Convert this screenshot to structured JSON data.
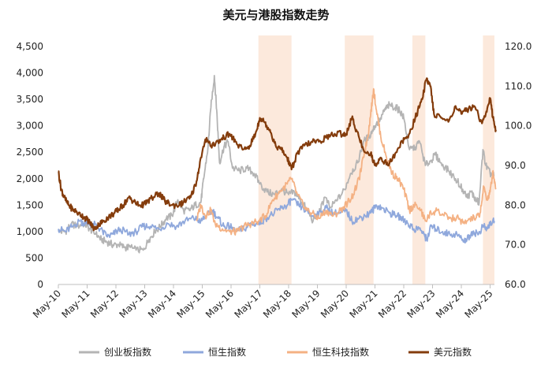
{
  "chart_data": {
    "type": "line",
    "title": "美元与港股指数走势",
    "x_tick_labels": [
      "May-10",
      "May-11",
      "May-12",
      "May-13",
      "May-14",
      "May-15",
      "May-16",
      "May-17",
      "May-18",
      "May-19",
      "May-20",
      "May-21",
      "May-22",
      "May-23",
      "May-24",
      "May-25"
    ],
    "y_left": {
      "ylim": [
        0,
        4500
      ],
      "tick_labels": [
        "0",
        "500",
        "1,000",
        "1,500",
        "2,000",
        "2,500",
        "3,000",
        "3,500",
        "4,000",
        "4,500"
      ]
    },
    "y_right": {
      "ylim": [
        60,
        120
      ],
      "tick_labels": [
        "60.0",
        "70.0",
        "80.0",
        "90.0",
        "100.0",
        "110.0",
        "120.0"
      ]
    },
    "shaded_periods": [
      {
        "start": 2016.95,
        "end": 2018.1
      },
      {
        "start": 2019.95,
        "end": 2020.95
      },
      {
        "start": 2022.3,
        "end": 2022.75
      },
      {
        "start": 2024.75,
        "end": 2025.15
      }
    ],
    "series": [
      {
        "name": "创业板指数",
        "axis": "left",
        "color": "#b4b4b4",
        "points": [
          [
            2010.0,
            1000
          ],
          [
            2010.25,
            1000
          ],
          [
            2010.45,
            1150
          ],
          [
            2010.65,
            1100
          ],
          [
            2010.9,
            1150
          ],
          [
            2011.1,
            1050
          ],
          [
            2011.3,
            950
          ],
          [
            2011.5,
            850
          ],
          [
            2011.7,
            800
          ],
          [
            2011.9,
            750
          ],
          [
            2012.1,
            750
          ],
          [
            2012.3,
            700
          ],
          [
            2012.5,
            700
          ],
          [
            2012.7,
            650
          ],
          [
            2012.95,
            650
          ],
          [
            2013.15,
            850
          ],
          [
            2013.35,
            1000
          ],
          [
            2013.55,
            1100
          ],
          [
            2013.75,
            1250
          ],
          [
            2013.95,
            1300
          ],
          [
            2014.15,
            1600
          ],
          [
            2014.35,
            1400
          ],
          [
            2014.55,
            1400
          ],
          [
            2014.75,
            1500
          ],
          [
            2014.95,
            1550
          ],
          [
            2015.05,
            2000
          ],
          [
            2015.2,
            2600
          ],
          [
            2015.3,
            3350
          ],
          [
            2015.42,
            3950
          ],
          [
            2015.5,
            3300
          ],
          [
            2015.6,
            2300
          ],
          [
            2015.75,
            2600
          ],
          [
            2015.9,
            2700
          ],
          [
            2016.05,
            2200
          ],
          [
            2016.3,
            2150
          ],
          [
            2016.55,
            2200
          ],
          [
            2016.8,
            2100
          ],
          [
            2017.0,
            1900
          ],
          [
            2017.25,
            1750
          ],
          [
            2017.5,
            1700
          ],
          [
            2017.75,
            1800
          ],
          [
            2018.0,
            1700
          ],
          [
            2018.2,
            1750
          ],
          [
            2018.4,
            1600
          ],
          [
            2018.6,
            1450
          ],
          [
            2018.85,
            1200
          ],
          [
            2019.1,
            1400
          ],
          [
            2019.25,
            1650
          ],
          [
            2019.45,
            1450
          ],
          [
            2019.7,
            1600
          ],
          [
            2019.95,
            1800
          ],
          [
            2020.15,
            2100
          ],
          [
            2020.4,
            2300
          ],
          [
            2020.6,
            2700
          ],
          [
            2020.8,
            2800
          ],
          [
            2021.0,
            3000
          ],
          [
            2021.2,
            3150
          ],
          [
            2021.35,
            3300
          ],
          [
            2021.5,
            3400
          ],
          [
            2021.7,
            3350
          ],
          [
            2021.85,
            3300
          ],
          [
            2022.0,
            3150
          ],
          [
            2022.2,
            2550
          ],
          [
            2022.4,
            2600
          ],
          [
            2022.55,
            2700
          ],
          [
            2022.75,
            2250
          ],
          [
            2022.95,
            2350
          ],
          [
            2023.1,
            2450
          ],
          [
            2023.3,
            2300
          ],
          [
            2023.55,
            2150
          ],
          [
            2023.8,
            2000
          ],
          [
            2024.05,
            1800
          ],
          [
            2024.2,
            1650
          ],
          [
            2024.35,
            1750
          ],
          [
            2024.5,
            1600
          ],
          [
            2024.62,
            1550
          ],
          [
            2024.75,
            2550
          ],
          [
            2024.85,
            2250
          ],
          [
            2025.0,
            2100
          ],
          [
            2025.15,
            2050
          ]
        ]
      },
      {
        "name": "恒生指数",
        "axis": "left",
        "color": "#8fa8dc",
        "points": [
          [
            2010.0,
            1050
          ],
          [
            2010.25,
            1000
          ],
          [
            2010.5,
            1100
          ],
          [
            2010.75,
            1200
          ],
          [
            2010.95,
            1150
          ],
          [
            2011.2,
            1150
          ],
          [
            2011.45,
            1050
          ],
          [
            2011.7,
            900
          ],
          [
            2011.9,
            950
          ],
          [
            2012.15,
            1050
          ],
          [
            2012.45,
            950
          ],
          [
            2012.7,
            1000
          ],
          [
            2012.95,
            1100
          ],
          [
            2013.2,
            1100
          ],
          [
            2013.5,
            1050
          ],
          [
            2013.8,
            1150
          ],
          [
            2014.1,
            1100
          ],
          [
            2014.4,
            1200
          ],
          [
            2014.7,
            1250
          ],
          [
            2014.95,
            1200
          ],
          [
            2015.15,
            1300
          ],
          [
            2015.35,
            1400
          ],
          [
            2015.55,
            1250
          ],
          [
            2015.75,
            1100
          ],
          [
            2015.95,
            1100
          ],
          [
            2016.15,
            1000
          ],
          [
            2016.45,
            1050
          ],
          [
            2016.7,
            1150
          ],
          [
            2016.95,
            1150
          ],
          [
            2017.2,
            1250
          ],
          [
            2017.5,
            1350
          ],
          [
            2017.75,
            1450
          ],
          [
            2017.95,
            1500
          ],
          [
            2018.1,
            1600
          ],
          [
            2018.35,
            1500
          ],
          [
            2018.6,
            1400
          ],
          [
            2018.85,
            1300
          ],
          [
            2019.05,
            1350
          ],
          [
            2019.3,
            1450
          ],
          [
            2019.55,
            1350
          ],
          [
            2019.8,
            1350
          ],
          [
            2020.0,
            1400
          ],
          [
            2020.2,
            1200
          ],
          [
            2020.45,
            1250
          ],
          [
            2020.65,
            1300
          ],
          [
            2020.85,
            1350
          ],
          [
            2021.05,
            1500
          ],
          [
            2021.25,
            1450
          ],
          [
            2021.5,
            1350
          ],
          [
            2021.75,
            1300
          ],
          [
            2021.95,
            1250
          ],
          [
            2022.15,
            1150
          ],
          [
            2022.35,
            1050
          ],
          [
            2022.55,
            1050
          ],
          [
            2022.7,
            950
          ],
          [
            2022.8,
            850
          ],
          [
            2022.95,
            1100
          ],
          [
            2023.1,
            1050
          ],
          [
            2023.35,
            1000
          ],
          [
            2023.6,
            950
          ],
          [
            2023.85,
            950
          ],
          [
            2024.05,
            850
          ],
          [
            2024.2,
            850
          ],
          [
            2024.4,
            1000
          ],
          [
            2024.6,
            950
          ],
          [
            2024.75,
            1100
          ],
          [
            2024.9,
            1050
          ],
          [
            2025.0,
            1150
          ],
          [
            2025.15,
            1200
          ]
        ]
      },
      {
        "name": "恒生科技指数",
        "axis": "left",
        "color": "#f4b183",
        "points": [
          [
            2014.8,
            1200
          ],
          [
            2014.95,
            1500
          ],
          [
            2015.1,
            1300
          ],
          [
            2015.3,
            1400
          ],
          [
            2015.45,
            1150
          ],
          [
            2015.7,
            1050
          ],
          [
            2015.95,
            1000
          ],
          [
            2016.2,
            1000
          ],
          [
            2016.45,
            1100
          ],
          [
            2016.7,
            1150
          ],
          [
            2016.95,
            1200
          ],
          [
            2017.2,
            1300
          ],
          [
            2017.45,
            1600
          ],
          [
            2017.7,
            1750
          ],
          [
            2017.95,
            1900
          ],
          [
            2018.1,
            2000
          ],
          [
            2018.3,
            1700
          ],
          [
            2018.55,
            1450
          ],
          [
            2018.8,
            1350
          ],
          [
            2019.05,
            1250
          ],
          [
            2019.3,
            1400
          ],
          [
            2019.55,
            1300
          ],
          [
            2019.8,
            1400
          ],
          [
            2020.05,
            1550
          ],
          [
            2020.25,
            1700
          ],
          [
            2020.45,
            2000
          ],
          [
            2020.6,
            2400
          ],
          [
            2020.75,
            2800
          ],
          [
            2020.85,
            3200
          ],
          [
            2020.95,
            3700
          ],
          [
            2021.05,
            3300
          ],
          [
            2021.2,
            2800
          ],
          [
            2021.4,
            2400
          ],
          [
            2021.6,
            2100
          ],
          [
            2021.8,
            2000
          ],
          [
            2022.0,
            1800
          ],
          [
            2022.2,
            1400
          ],
          [
            2022.35,
            1500
          ],
          [
            2022.55,
            1450
          ],
          [
            2022.75,
            1200
          ],
          [
            2022.95,
            1350
          ],
          [
            2023.15,
            1400
          ],
          [
            2023.4,
            1300
          ],
          [
            2023.65,
            1250
          ],
          [
            2023.9,
            1250
          ],
          [
            2024.1,
            1150
          ],
          [
            2024.3,
            1250
          ],
          [
            2024.5,
            1250
          ],
          [
            2024.65,
            1350
          ],
          [
            2024.78,
            1850
          ],
          [
            2024.9,
            1600
          ],
          [
            2025.0,
            1750
          ],
          [
            2025.1,
            2150
          ],
          [
            2025.2,
            1800
          ]
        ]
      },
      {
        "name": "美元指数",
        "axis": "right",
        "color": "#843c0c",
        "points": [
          [
            2010.0,
            88.5
          ],
          [
            2010.1,
            84
          ],
          [
            2010.2,
            82
          ],
          [
            2010.35,
            80
          ],
          [
            2010.5,
            79
          ],
          [
            2010.7,
            78
          ],
          [
            2010.9,
            77
          ],
          [
            2011.05,
            76
          ],
          [
            2011.25,
            74
          ],
          [
            2011.4,
            75
          ],
          [
            2011.55,
            76
          ],
          [
            2011.75,
            77
          ],
          [
            2011.95,
            78
          ],
          [
            2012.1,
            79
          ],
          [
            2012.25,
            80
          ],
          [
            2012.45,
            82
          ],
          [
            2012.6,
            81
          ],
          [
            2012.8,
            80
          ],
          [
            2012.95,
            80
          ],
          [
            2013.1,
            81
          ],
          [
            2013.3,
            82
          ],
          [
            2013.5,
            83
          ],
          [
            2013.7,
            81
          ],
          [
            2013.95,
            80
          ],
          [
            2014.2,
            80
          ],
          [
            2014.4,
            81
          ],
          [
            2014.6,
            82
          ],
          [
            2014.8,
            86
          ],
          [
            2014.95,
            92
          ],
          [
            2015.15,
            97
          ],
          [
            2015.3,
            95
          ],
          [
            2015.55,
            96
          ],
          [
            2015.75,
            97
          ],
          [
            2015.95,
            98
          ],
          [
            2016.15,
            96
          ],
          [
            2016.4,
            94
          ],
          [
            2016.65,
            95
          ],
          [
            2016.85,
            98
          ],
          [
            2017.0,
            102
          ],
          [
            2017.15,
            101
          ],
          [
            2017.35,
            99
          ],
          [
            2017.55,
            95
          ],
          [
            2017.75,
            94
          ],
          [
            2017.95,
            92
          ],
          [
            2018.1,
            89
          ],
          [
            2018.3,
            93
          ],
          [
            2018.55,
            95
          ],
          [
            2018.8,
            96
          ],
          [
            2019.05,
            96
          ],
          [
            2019.3,
            97
          ],
          [
            2019.6,
            98
          ],
          [
            2019.9,
            98
          ],
          [
            2020.0,
            98
          ],
          [
            2020.2,
            102
          ],
          [
            2020.35,
            99
          ],
          [
            2020.6,
            94
          ],
          [
            2020.85,
            93
          ],
          [
            2021.0,
            90
          ],
          [
            2021.2,
            92
          ],
          [
            2021.45,
            90
          ],
          [
            2021.7,
            93
          ],
          [
            2021.95,
            96
          ],
          [
            2022.15,
            97
          ],
          [
            2022.4,
            102
          ],
          [
            2022.6,
            106
          ],
          [
            2022.8,
            112
          ],
          [
            2022.92,
            110
          ],
          [
            2023.05,
            103
          ],
          [
            2023.3,
            102
          ],
          [
            2023.55,
            101
          ],
          [
            2023.8,
            105
          ],
          [
            2024.0,
            103
          ],
          [
            2024.2,
            104
          ],
          [
            2024.45,
            105
          ],
          [
            2024.7,
            101
          ],
          [
            2024.85,
            103
          ],
          [
            2025.0,
            107
          ],
          [
            2025.1,
            102
          ],
          [
            2025.2,
            99
          ]
        ]
      }
    ]
  }
}
